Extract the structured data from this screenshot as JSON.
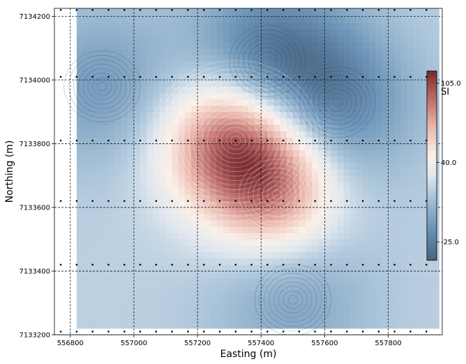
{
  "chart_data": {
    "type": "heatmap",
    "title": "",
    "xlabel": "Easting (m)",
    "ylabel": "Northing (m)",
    "xlim": [
      556750,
      557970
    ],
    "ylim": [
      7133200,
      7134225
    ],
    "x_ticks": [
      556800,
      557000,
      557200,
      557400,
      557600,
      557800
    ],
    "x_tick_labels": [
      "556800",
      "557000",
      "557200",
      "557400",
      "557600",
      "557800"
    ],
    "y_ticks": [
      7133200,
      7133400,
      7133600,
      7133800,
      7134000,
      7134200
    ],
    "y_tick_labels": [
      "7133200",
      "7133400",
      "7133600",
      "7133800",
      "7134000",
      "7134200"
    ],
    "grid": true,
    "grid_style": "dashed",
    "colormap": "blue-white-red",
    "colorbar": {
      "label": "SI",
      "range": [
        -40,
        115
      ],
      "ticks": [
        -25,
        40,
        105
      ],
      "tick_labels": [
        "-25.0",
        "40.0",
        "105.0"
      ]
    },
    "anomalies": [
      {
        "name": "high",
        "x": 557320,
        "y": 7133810,
        "value": 110
      },
      {
        "name": "high-tail",
        "x": 557450,
        "y": 7133640,
        "value": 70
      },
      {
        "name": "low",
        "x": 557420,
        "y": 7134060,
        "value": -35
      },
      {
        "name": "low",
        "x": 557640,
        "y": 7133930,
        "value": -20
      },
      {
        "name": "low",
        "x": 556900,
        "y": 7133980,
        "value": -10
      },
      {
        "name": "low",
        "x": 557500,
        "y": 7133310,
        "value": -5
      }
    ],
    "stations_y": [
      7134220,
      7134010,
      7133810,
      7133620,
      7133420,
      7133210
    ],
    "stations_x_step": 50,
    "stations_x_start": 556770,
    "stations_x_end": 557950
  }
}
